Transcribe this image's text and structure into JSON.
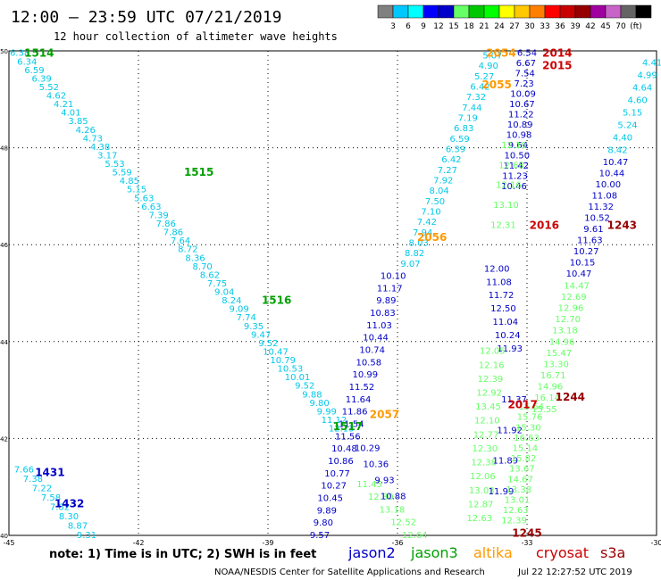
{
  "header": {
    "title": "12:00 – 23:59 UTC 07/21/2019",
    "subtitle": "12 hour collection of altimeter wave heights"
  },
  "color_scale": {
    "colors": [
      "#808080",
      "#00c8ff",
      "#00ffff",
      "#0000ff",
      "#0000c8",
      "#66ff66",
      "#00c800",
      "#00ff00",
      "#ffff00",
      "#ffc800",
      "#ff8000",
      "#ff0000",
      "#c80000",
      "#960000",
      "#a000a0",
      "#c864c8",
      "#646464",
      "#000000"
    ],
    "labels": [
      "3",
      "6",
      "9",
      "12",
      "15",
      "18",
      "21",
      "24",
      "27",
      "30",
      "33",
      "36",
      "39",
      "42",
      "45",
      "70",
      "(ft)"
    ]
  },
  "footer": {
    "note": "note:  1) Time is in UTC;  2) SWH is in feet",
    "credit": "NOAA/NESDIS Center for Satellite Applications and Research",
    "timestamp": "Jul 22 12:27:52 UTC 2019"
  },
  "chart_data": {
    "type": "scatter",
    "xlim": [
      -45,
      -30
    ],
    "ylim": [
      40,
      50
    ],
    "x_ticks": [
      -45,
      -42,
      -39,
      -36,
      -33,
      -30
    ],
    "x_tick_labels": [
      "-45",
      "-42",
      "-39",
      "-36",
      "-33",
      "-30"
    ],
    "y_ticks": [
      40,
      42,
      44,
      46,
      48,
      50
    ],
    "y_tick_labels": [
      "40",
      "42",
      "44",
      "46",
      "48",
      "50"
    ],
    "grid": true,
    "legend": {
      "position": "bottom",
      "entries": [
        {
          "name": "jason2",
          "color": "#0000c8"
        },
        {
          "name": "jason3",
          "color": "#00a000"
        },
        {
          "name": "altika",
          "color": "#ff9900"
        },
        {
          "name": "cryosat",
          "color": "#cc0000"
        },
        {
          "name": "s3a",
          "color": "#990000"
        }
      ]
    },
    "pass_labels": [
      {
        "text": "1514",
        "lon": -44.3,
        "lat": 49.95,
        "color": "#00a000"
      },
      {
        "text": "1515",
        "lon": -40.6,
        "lat": 47.5,
        "color": "#00a000"
      },
      {
        "text": "1516",
        "lon": -38.8,
        "lat": 44.85,
        "color": "#00a000"
      },
      {
        "text": "1517",
        "lon": -37.15,
        "lat": 42.25,
        "color": "#00a000"
      },
      {
        "text": "1431",
        "lon": -44.05,
        "lat": 41.3,
        "color": "#0000c8"
      },
      {
        "text": "1432",
        "lon": -43.6,
        "lat": 40.65,
        "color": "#0000c8"
      },
      {
        "text": "2054",
        "lon": -33.6,
        "lat": 49.95,
        "color": "#ff9900"
      },
      {
        "text": "2055",
        "lon": -33.7,
        "lat": 49.3,
        "color": "#ff9900"
      },
      {
        "text": "2056",
        "lon": -35.2,
        "lat": 46.15,
        "color": "#ff9900"
      },
      {
        "text": "2057",
        "lon": -36.3,
        "lat": 42.5,
        "color": "#ff9900"
      },
      {
        "text": "2014",
        "lon": -32.3,
        "lat": 49.95,
        "color": "#cc0000"
      },
      {
        "text": "2015",
        "lon": -32.3,
        "lat": 49.7,
        "color": "#cc0000"
      },
      {
        "text": "2016",
        "lon": -32.6,
        "lat": 46.4,
        "color": "#cc0000"
      },
      {
        "text": "2017",
        "lon": -33.1,
        "lat": 42.7,
        "color": "#cc0000"
      },
      {
        "text": "1243",
        "lon": -30.8,
        "lat": 46.4,
        "color": "#990000"
      },
      {
        "text": "1244",
        "lon": -32.0,
        "lat": 42.85,
        "color": "#990000"
      },
      {
        "text": "1245",
        "lon": -33.0,
        "lat": 40.05,
        "color": "#990000"
      }
    ],
    "tracks": [
      {
        "satellite": "jason3",
        "pass": "1514-1517",
        "color": "#00c8e8",
        "start": [
          -44.75,
          49.95
        ],
        "end": [
          -37.3,
          42.2
        ],
        "values": [
          "6.38",
          "6.34",
          "6.59",
          "6.39",
          "5.52",
          "4.62",
          "4.21",
          "4.01",
          "3.85",
          "4.26",
          "4.73",
          "4.38",
          "3.17",
          "5.53",
          "5.59",
          "4.85",
          "5.15",
          "5.63",
          "6.63",
          "7.39",
          "7.86",
          "7.86",
          "7.64",
          "8.72",
          "8.36",
          "8.70",
          "8.62",
          "7.75",
          "9.04",
          "8.24",
          "9.09",
          "7.74",
          "9.35",
          "9.47",
          "9.52",
          "10.47",
          "10.79",
          "10.53",
          "10.01",
          "9.52",
          "9.88",
          "9.80",
          "9.99",
          "11.12",
          "12.13"
        ]
      },
      {
        "satellite": "jason3",
        "pass": "1517-south",
        "color": "#66ff66",
        "start": [
          -36.65,
          41.05
        ],
        "end": [
          -35.6,
          40.0
        ],
        "values": [
          "11.45",
          "12.80",
          "13.18",
          "12.52",
          "12.64"
        ]
      },
      {
        "satellite": "jason2",
        "pass": "1431",
        "color": "#00c8e8",
        "start": [
          -44.65,
          41.35
        ],
        "end": [
          -43.2,
          40.0
        ],
        "values": [
          "7.66",
          "7.38",
          "7.22",
          "7.58",
          "7.82",
          "8.30",
          "8.87",
          "9.31"
        ]
      },
      {
        "satellite": "jason2",
        "pass": "1432",
        "color": "#0000c8",
        "start": [
          -36.1,
          45.35
        ],
        "end": [
          -37.8,
          40.0
        ],
        "values": [
          "10.10",
          "11.17",
          "9.89",
          "10.83",
          "11.03",
          "10.44",
          "10.74",
          "10.58",
          "10.99",
          "11.52",
          "11.64",
          "11.86",
          "11.54",
          "11.56",
          "10.48",
          "10.86",
          "10.77",
          "10.27",
          "10.45",
          "9.89",
          "9.80",
          "9.57"
        ]
      },
      {
        "satellite": "altika",
        "pass": "2054-2057",
        "color": "#00c8e8",
        "start": [
          -33.8,
          49.9
        ],
        "end": [
          -35.7,
          45.6
        ],
        "values": [
          "5.07",
          "4.90",
          "5.27",
          "6.42",
          "7.32",
          "7.44",
          "7.19",
          "6.83",
          "6.59",
          "6.39",
          "6.42",
          "7.27",
          "7.92",
          "8.04",
          "7.50",
          "7.10",
          "7.42",
          "7.94",
          "8.03",
          "8.82",
          "9.07"
        ]
      },
      {
        "satellite": "altika",
        "pass": "2057-south",
        "color": "#0000c8",
        "start": [
          -36.7,
          41.8
        ],
        "end": [
          -36.1,
          40.8
        ],
        "values": [
          "10.29",
          "10.36",
          "9.93",
          "10.88"
        ]
      },
      {
        "satellite": "cryosat",
        "pass": "2014-2016",
        "color": "#0000c8",
        "start": [
          -33.0,
          49.95
        ],
        "end": [
          -33.3,
          47.2
        ],
        "values": [
          "6.54",
          "6.67",
          "7.54",
          "7.23",
          "10.09",
          "10.67",
          "11.22",
          "10.89",
          "10.98",
          "9.64",
          "10.50",
          "11.42",
          "11.23",
          "10.46"
        ]
      },
      {
        "satellite": "jason3",
        "pass": "1516-south",
        "color": "#66ff66",
        "start": [
          -33.3,
          48.05
        ],
        "end": [
          -33.55,
          46.4
        ],
        "values": [
          "12.19",
          "12.68",
          "12.16",
          "13.10",
          "12.31"
        ]
      },
      {
        "satellite": "cryosat",
        "pass": "2016-2017",
        "color": "#0000c8",
        "start": [
          -33.7,
          45.5
        ],
        "end": [
          -33.4,
          43.85
        ],
        "values": [
          "12.00",
          "11.08",
          "11.72",
          "12.50",
          "11.04",
          "10.24",
          "11.93"
        ]
      },
      {
        "satellite": "jason3",
        "pass": "1517-mid",
        "color": "#66ff66",
        "start": [
          -33.8,
          43.8
        ],
        "end": [
          -34.1,
          40.35
        ],
        "values": [
          "12.05",
          "12.16",
          "12.39",
          "12.92",
          "13.45",
          "12.10",
          "12.77",
          "12.30",
          "12.38",
          "12.06",
          "13.03",
          "12.87",
          "12.63"
        ]
      },
      {
        "satellite": "jason2",
        "pass": "1432-east",
        "color": "#0000c8",
        "start": [
          -33.3,
          42.8
        ],
        "end": [
          -33.6,
          40.9
        ],
        "values": [
          "11.37",
          "11.92",
          "11.89",
          "11.99"
        ]
      },
      {
        "satellite": "cryosat",
        "pass": "2017-south",
        "color": "#66ff66",
        "start": [
          -32.9,
          42.65
        ],
        "end": [
          -33.3,
          40.3
        ],
        "values": [
          "15.54",
          "15.76",
          "15.30",
          "16.63",
          "15.14",
          "15.82",
          "13.67",
          "14.67",
          "13.38",
          "13.01",
          "12.63",
          "12.39"
        ]
      },
      {
        "satellite": "s3a",
        "pass": "1243-1244",
        "color": "#00c8e8",
        "start": [
          -30.1,
          49.75
        ],
        "end": [
          -30.9,
          47.95
        ],
        "values": [
          "4.41",
          "4.99",
          "4.64",
          "4.60",
          "5.15",
          "5.24",
          "4.40",
          "8.42"
        ]
      },
      {
        "satellite": "s3a",
        "pass": "1243-1244-b",
        "color": "#0000c8",
        "start": [
          -30.95,
          47.7
        ],
        "end": [
          -31.8,
          45.4
        ],
        "values": [
          "10.47",
          "10.44",
          "10.00",
          "11.08",
          "11.32",
          "10.52",
          "9.61",
          "11.63",
          "10.27",
          "10.15",
          "10.47"
        ]
      },
      {
        "satellite": "s3a",
        "pass": "1244-south",
        "color": "#66ff66",
        "start": [
          -31.85,
          45.15
        ],
        "end": [
          -32.6,
          42.6
        ],
        "values": [
          "14.47",
          "12.69",
          "12.96",
          "12.70",
          "13.18",
          "14.96",
          "15.47",
          "13.30",
          "16.71",
          "14.96",
          "16.14",
          "15.55"
        ]
      }
    ]
  }
}
